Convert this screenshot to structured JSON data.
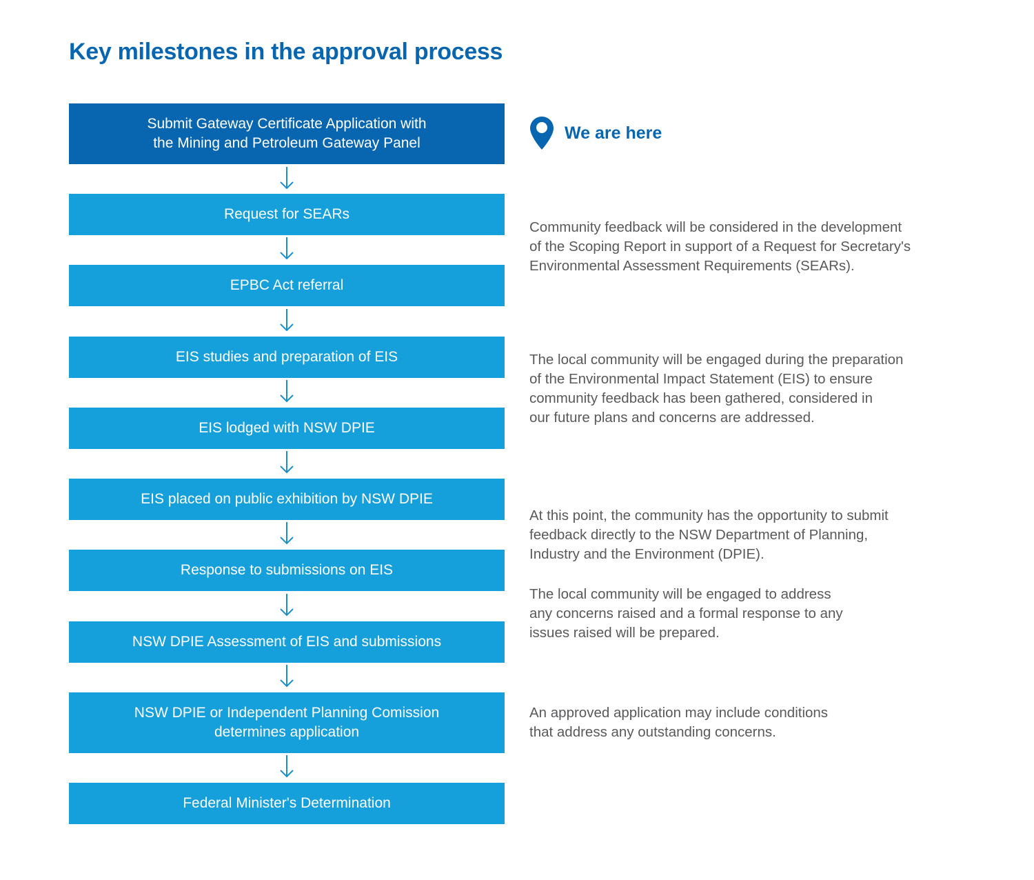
{
  "title": "Key milestones in the approval process",
  "colors": {
    "title": "#0866b1",
    "current_step": "#0866b1",
    "step": "#159fdb",
    "arrow": "#1a8fcb",
    "note_text": "#58595b"
  },
  "steps": [
    {
      "label": "Submit Gateway Certificate Application with\nthe Mining and Petroleum Gateway Panel",
      "current": true
    },
    {
      "label": "Request for SEARs"
    },
    {
      "label": "EPBC Act referral"
    },
    {
      "label": "EIS studies and preparation of EIS"
    },
    {
      "label": "EIS lodged with NSW DPIE"
    },
    {
      "label": "EIS placed on public exhibition by NSW DPIE"
    },
    {
      "label": "Response to submissions on EIS"
    },
    {
      "label": "NSW DPIE Assessment of EIS and submissions"
    },
    {
      "label": "NSW DPIE or Independent Planning Comission\ndetermines application"
    },
    {
      "label": "Federal Minister's Determination"
    }
  ],
  "marker": {
    "label": "We are here",
    "icon": "location-pin-icon"
  },
  "notes": [
    "Community feedback will be considered in the development\nof the Scoping Report in support of a Request for Secretary's\nEnvironmental Assessment Requirements (SEARs).",
    "The local community will be engaged during the preparation\nof the Environmental Impact Statement (EIS) to ensure\ncommunity feedback has been gathered, considered in\nour future plans and concerns are addressed.",
    "At this point, the community has the opportunity to submit\nfeedback directly to the NSW Department of Planning,\nIndustry and the Environment (DPIE).",
    "The local community will be engaged to address\nany concerns raised and a formal response to any\nissues raised will be prepared.",
    "An approved application may include conditions\nthat address any outstanding concerns."
  ]
}
